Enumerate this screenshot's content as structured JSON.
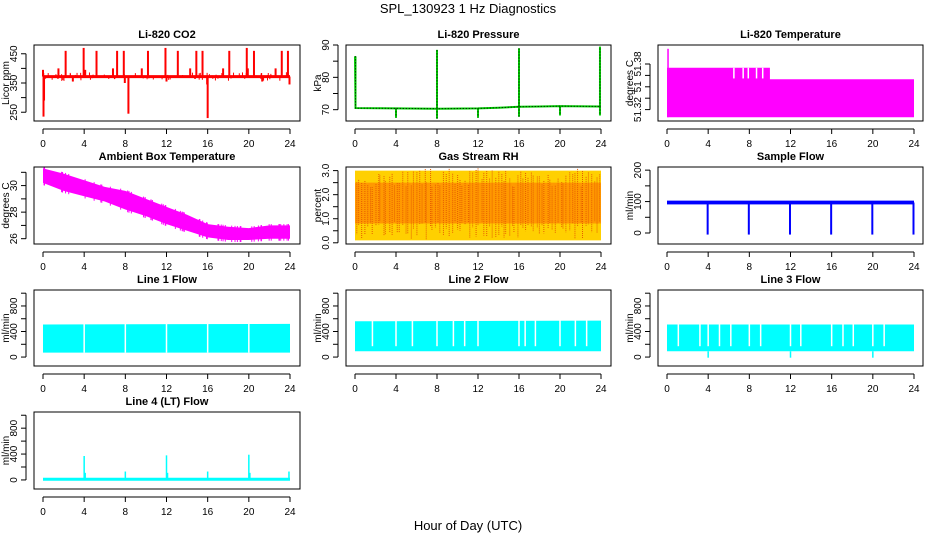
{
  "figure": {
    "title": "SPL_130923  1 Hz Diagnostics",
    "xlabel": "Hour of Day (UTC)"
  },
  "chart_data": [
    {
      "type": "line",
      "title": "Li-820 CO2",
      "ylabel": "Licor ppm",
      "color": "#ff0000",
      "xlim": [
        0,
        24
      ],
      "ylim": [
        220,
        480
      ],
      "xticks": [
        0,
        4,
        8,
        12,
        16,
        20,
        24
      ],
      "yticks": [
        250,
        300,
        350,
        400,
        450
      ],
      "ytick_labels": [
        "250",
        "",
        "350",
        "",
        "450"
      ],
      "baseline": 372,
      "series": {
        "x": [
          0,
          0.05,
          0.1,
          0.2,
          1.5,
          2.2,
          2.9,
          3.95,
          4.1,
          5.2,
          6.8,
          7.2,
          7.85,
          7.95,
          8.3,
          9.6,
          10.2,
          11.9,
          12.0,
          13.1,
          14.3,
          14.9,
          15.5,
          15.95,
          16.0,
          17.5,
          18.1,
          19.8,
          19.9,
          20.5,
          21.3,
          22.6,
          23.2,
          23.8,
          23.95
        ],
        "y": [
          395,
          235,
          290,
          372,
          400,
          460,
          355,
          470,
          395,
          460,
          400,
          460,
          460,
          350,
          245,
          400,
          460,
          470,
          355,
          460,
          400,
          460,
          460,
          345,
          230,
          400,
          460,
          470,
          400,
          460,
          355,
          400,
          460,
          460,
          345
        ]
      }
    },
    {
      "type": "line",
      "title": "Li-820 Pressure",
      "ylabel": "kPa",
      "color": "#00cc00",
      "xlim": [
        0,
        24
      ],
      "ylim": [
        66.5,
        90
      ],
      "xticks": [
        0,
        4,
        8,
        12,
        16,
        20,
        24
      ],
      "yticks": [
        70,
        75,
        80,
        85,
        90
      ],
      "ytick_labels": [
        "70",
        "",
        "80",
        "",
        "90"
      ],
      "series": {
        "x": [
          0,
          0.05,
          4,
          8,
          12,
          14,
          16,
          18,
          20,
          23.9
        ],
        "y": [
          86.5,
          70.5,
          70.4,
          70.3,
          70.4,
          70.6,
          70.9,
          71.0,
          71.1,
          71.0
        ]
      },
      "spikes": [
        {
          "x": 0.05,
          "y": 86.5
        },
        {
          "x": 4,
          "y": 67.5
        },
        {
          "x": 8,
          "y": 88.5
        },
        {
          "x": 8,
          "y": 67.2
        },
        {
          "x": 12,
          "y": 67.5
        },
        {
          "x": 16,
          "y": 89
        },
        {
          "x": 16,
          "y": 67.8
        },
        {
          "x": 20,
          "y": 68.2
        },
        {
          "x": 23.9,
          "y": 89.5
        },
        {
          "x": 23.9,
          "y": 68.2
        }
      ]
    },
    {
      "type": "area",
      "title": "Li-820 Temperature",
      "ylabel": "degrees C",
      "color": "#ff00ff",
      "xlim": [
        0,
        24
      ],
      "ylim": [
        51.305,
        51.405
      ],
      "xticks": [
        0,
        4,
        8,
        12,
        16,
        20,
        24
      ],
      "yticks": [
        51.32,
        51.335,
        51.35,
        51.365,
        51.38
      ],
      "ytick_labels": [
        "51.32",
        "",
        "51",
        "",
        "51.38"
      ],
      "series": {
        "x": [
          0,
          10,
          10,
          24
        ],
        "upper": [
          51.375,
          51.375,
          51.36,
          51.36
        ],
        "lower": [
          51.31,
          51.31,
          51.31,
          51.31
        ]
      }
    },
    {
      "type": "area",
      "title": "Ambient Box Temperature",
      "ylabel": "degrees C",
      "color": "#ff00ff",
      "xlim": [
        0,
        24
      ],
      "ylim": [
        25.6,
        31.4
      ],
      "xticks": [
        0,
        4,
        8,
        12,
        16,
        20,
        24
      ],
      "yticks": [
        26,
        27,
        28,
        29,
        30,
        31
      ],
      "ytick_labels": [
        "26",
        "",
        "28",
        "",
        "30",
        ""
      ],
      "series": {
        "x": [
          0,
          2,
          4,
          6,
          8,
          10,
          12,
          14,
          16,
          18,
          20,
          22,
          24
        ],
        "upper": [
          31.3,
          30.9,
          30.4,
          29.9,
          29.6,
          29.0,
          28.4,
          27.8,
          27.1,
          26.9,
          26.8,
          27.0,
          27.0
        ],
        "lower": [
          30.2,
          29.6,
          29.2,
          28.8,
          28.2,
          27.7,
          27.1,
          26.6,
          26.1,
          25.9,
          25.9,
          26.0,
          26.0
        ]
      }
    },
    {
      "type": "area",
      "title": "Gas Stream RH",
      "ylabel": "percent",
      "color": "#ff9900",
      "secondary_color": "#ff0000",
      "xlim": [
        0,
        24
      ],
      "ylim": [
        -0.05,
        3.15
      ],
      "xticks": [
        0,
        4,
        8,
        12,
        16,
        20,
        24
      ],
      "yticks": [
        0.0,
        0.5,
        1.0,
        1.5,
        2.0,
        2.5,
        3.0
      ],
      "ytick_labels": [
        "0.0",
        "",
        "1.0",
        "",
        "2.0",
        "",
        "3.0"
      ],
      "series": {
        "x": [
          0,
          24
        ],
        "upper": [
          3.0,
          3.0
        ],
        "lower": [
          0.1,
          0.1
        ],
        "core_upper": [
          2.5,
          2.5
        ],
        "core_lower": [
          0.8,
          0.8
        ]
      }
    },
    {
      "type": "line",
      "title": "Sample Flow",
      "ylabel": "ml/min",
      "color": "#0000ff",
      "xlim": [
        0,
        24
      ],
      "ylim": [
        -35,
        210
      ],
      "xticks": [
        0,
        4,
        8,
        12,
        16,
        20,
        24
      ],
      "yticks": [
        0,
        50,
        100,
        150,
        200
      ],
      "ytick_labels": [
        "0",
        "",
        "100",
        "",
        "200"
      ],
      "baseline": 97,
      "dips": [
        4,
        8,
        12,
        16,
        20,
        24
      ],
      "dip_value": -5
    },
    {
      "type": "area",
      "title": "Line 1 Flow",
      "ylabel": "ml/min",
      "color": "#00ffff",
      "xlim": [
        0,
        24
      ],
      "ylim": [
        -140,
        1050
      ],
      "xticks": [
        0,
        4,
        8,
        12,
        16,
        20,
        24
      ],
      "yticks": [
        0,
        200,
        400,
        600,
        800,
        1000
      ],
      "ytick_labels": [
        "0",
        "",
        "400",
        "",
        "800",
        ""
      ],
      "series": {
        "x": [
          0,
          24
        ],
        "upper": [
          510,
          520
        ],
        "lower": [
          70,
          70
        ]
      },
      "gaps": [
        4,
        8,
        12,
        16,
        20
      ]
    },
    {
      "type": "area",
      "title": "Line 2 Flow",
      "ylabel": "ml/min",
      "color": "#00ffff",
      "xlim": [
        0,
        24
      ],
      "ylim": [
        -140,
        1050
      ],
      "xticks": [
        0,
        4,
        8,
        12,
        16,
        20,
        24
      ],
      "yticks": [
        0,
        200,
        400,
        600,
        800,
        1000
      ],
      "ytick_labels": [
        "0",
        "",
        "400",
        "",
        "800",
        ""
      ],
      "series": {
        "x": [
          0,
          24
        ],
        "upper": [
          560,
          570
        ],
        "lower": [
          90,
          90
        ]
      },
      "gaps": [
        1.7,
        4,
        5.6,
        8,
        9.6,
        10.7,
        12,
        16,
        16.6,
        17.6,
        20,
        21.5,
        22.6
      ]
    },
    {
      "type": "area",
      "title": "Line 3 Flow",
      "ylabel": "ml/min",
      "color": "#00ffff",
      "xlim": [
        0,
        24
      ],
      "ylim": [
        -140,
        1050
      ],
      "xticks": [
        0,
        4,
        8,
        12,
        16,
        20,
        24
      ],
      "yticks": [
        0,
        200,
        400,
        600,
        800,
        1000
      ],
      "ytick_labels": [
        "0",
        "",
        "400",
        "",
        "800",
        ""
      ],
      "series": {
        "x": [
          0,
          24
        ],
        "upper": [
          510,
          510
        ],
        "lower": [
          90,
          90
        ]
      },
      "gaps": [
        1.1,
        3.2,
        4,
        5.1,
        6.2,
        8,
        9.1,
        12,
        13.0,
        16,
        17.1,
        18.1,
        20,
        21.1
      ],
      "dips": [
        4,
        12,
        20
      ]
    },
    {
      "type": "line",
      "title": "Line 4 (LT) Flow",
      "ylabel": "ml/min",
      "color": "#00ffff",
      "xlim": [
        0,
        24
      ],
      "ylim": [
        -140,
        1050
      ],
      "xticks": [
        0,
        4,
        8,
        12,
        16,
        20,
        24
      ],
      "yticks": [
        0,
        200,
        400,
        600,
        800,
        1000
      ],
      "ytick_labels": [
        "0",
        "",
        "400",
        "",
        "800",
        ""
      ],
      "baseline": 10,
      "spikes": [
        {
          "x": 4,
          "y": 370
        },
        {
          "x": 4.1,
          "y": 110
        },
        {
          "x": 8,
          "y": 130
        },
        {
          "x": 12,
          "y": 380
        },
        {
          "x": 12.1,
          "y": 110
        },
        {
          "x": 16,
          "y": 130
        },
        {
          "x": 20,
          "y": 390
        },
        {
          "x": 20.1,
          "y": 110
        },
        {
          "x": 23.9,
          "y": 130
        }
      ]
    }
  ]
}
